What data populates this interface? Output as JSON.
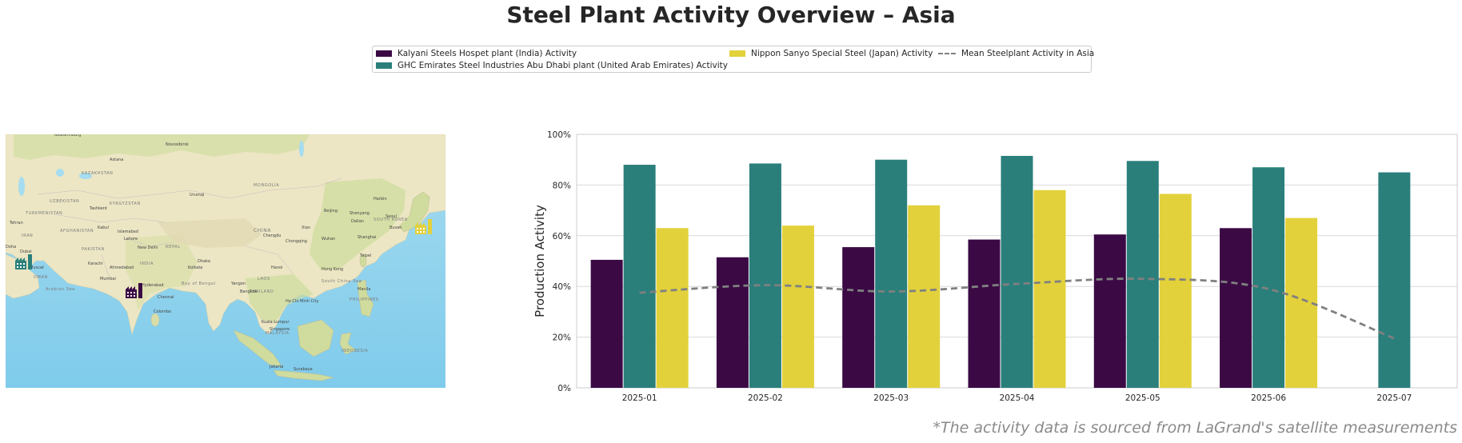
{
  "title": "Steel Plant Activity Overview – Asia",
  "footnote": "*The activity data is sourced from LaGrand's satellite measurements",
  "legend": {
    "kalyani": "Kalyani Steels Hospet plant (India) Activity",
    "ghc": "GHC Emirates Steel Industries Abu Dhabi plant (United Arab Emirates) Activity",
    "nippon": "Nippon Sanyo Special Steel (Japan) Activity",
    "mean": "Mean Steelplant Activity in Asia"
  },
  "colors": {
    "kalyani": "#3b0a45",
    "ghc": "#2a7f7b",
    "nippon": "#e2d13b",
    "mean": "#808080"
  },
  "map": {
    "icon": "factory-icon",
    "country_labels": [
      "KAZAKHSTAN",
      "MONGOLIA",
      "CHINA",
      "INDIA",
      "TURKMENISTAN",
      "UZBEKISTAN",
      "AFGHANISTAN",
      "PAKISTAN",
      "IRAN",
      "OMAN",
      "KYRGYZSTAN",
      "NEPAL",
      "THAILAND",
      "MALAYSIA",
      "INDONESIA",
      "PHILIPPINES",
      "SOUTH KOREA",
      "LAOS"
    ],
    "water_labels": [
      "Arabian Sea",
      "Bay of Bengal",
      "South China Sea"
    ],
    "city_labels": [
      "Yekaterinburg",
      "Novosibirsk",
      "Astana",
      "Urumqi",
      "Tashkent",
      "Tehran",
      "Kabul",
      "Islamabad",
      "Lahore",
      "New Delhi",
      "Karachi",
      "Ahmedabad",
      "Mumbai",
      "Hyderabad",
      "Chennai",
      "Colombo",
      "Dhaka",
      "Kolkata",
      "Yangon",
      "Bangkok",
      "Hanoi",
      "Ho Chi Minh City",
      "Kuala Lumpur",
      "Singapore",
      "Jakarta",
      "Surabaya",
      "Manila",
      "Taipei",
      "Hong Kong",
      "Shanghai",
      "Wuhan",
      "Chongqing",
      "Chengdu",
      "Xian",
      "Beijing",
      "Shenyang",
      "Dalian",
      "Seoul",
      "Busan",
      "Harbin",
      "Doha",
      "Dubai",
      "Muscat"
    ]
  },
  "chart_data": {
    "type": "bar",
    "categories": [
      "2025-01",
      "2025-02",
      "2025-03",
      "2025-04",
      "2025-05",
      "2025-06",
      "2025-07"
    ],
    "series": [
      {
        "name": "Kalyani Steels Hospet plant (India) Activity",
        "key": "kalyani",
        "values": [
          50.5,
          51.5,
          55.5,
          58.5,
          60.5,
          63,
          null
        ]
      },
      {
        "name": "GHC Emirates Steel Industries Abu Dhabi plant (United Arab Emirates) Activity",
        "key": "ghc",
        "values": [
          88,
          88.5,
          90,
          91.5,
          89.5,
          87,
          85
        ]
      },
      {
        "name": "Nippon Sanyo Special Steel (Japan) Activity",
        "key": "nippon",
        "values": [
          63,
          64,
          72,
          78,
          76.5,
          67,
          null
        ]
      }
    ],
    "line": {
      "name": "Mean Steelplant Activity in Asia",
      "values": [
        37.5,
        40.5,
        38,
        41,
        43,
        39,
        19.5
      ]
    },
    "ylabel": "Production Activity",
    "xlabel": "",
    "ylim": [
      0,
      100
    ],
    "yticks": [
      "0%",
      "20%",
      "40%",
      "60%",
      "80%",
      "100%"
    ],
    "grid": true
  }
}
